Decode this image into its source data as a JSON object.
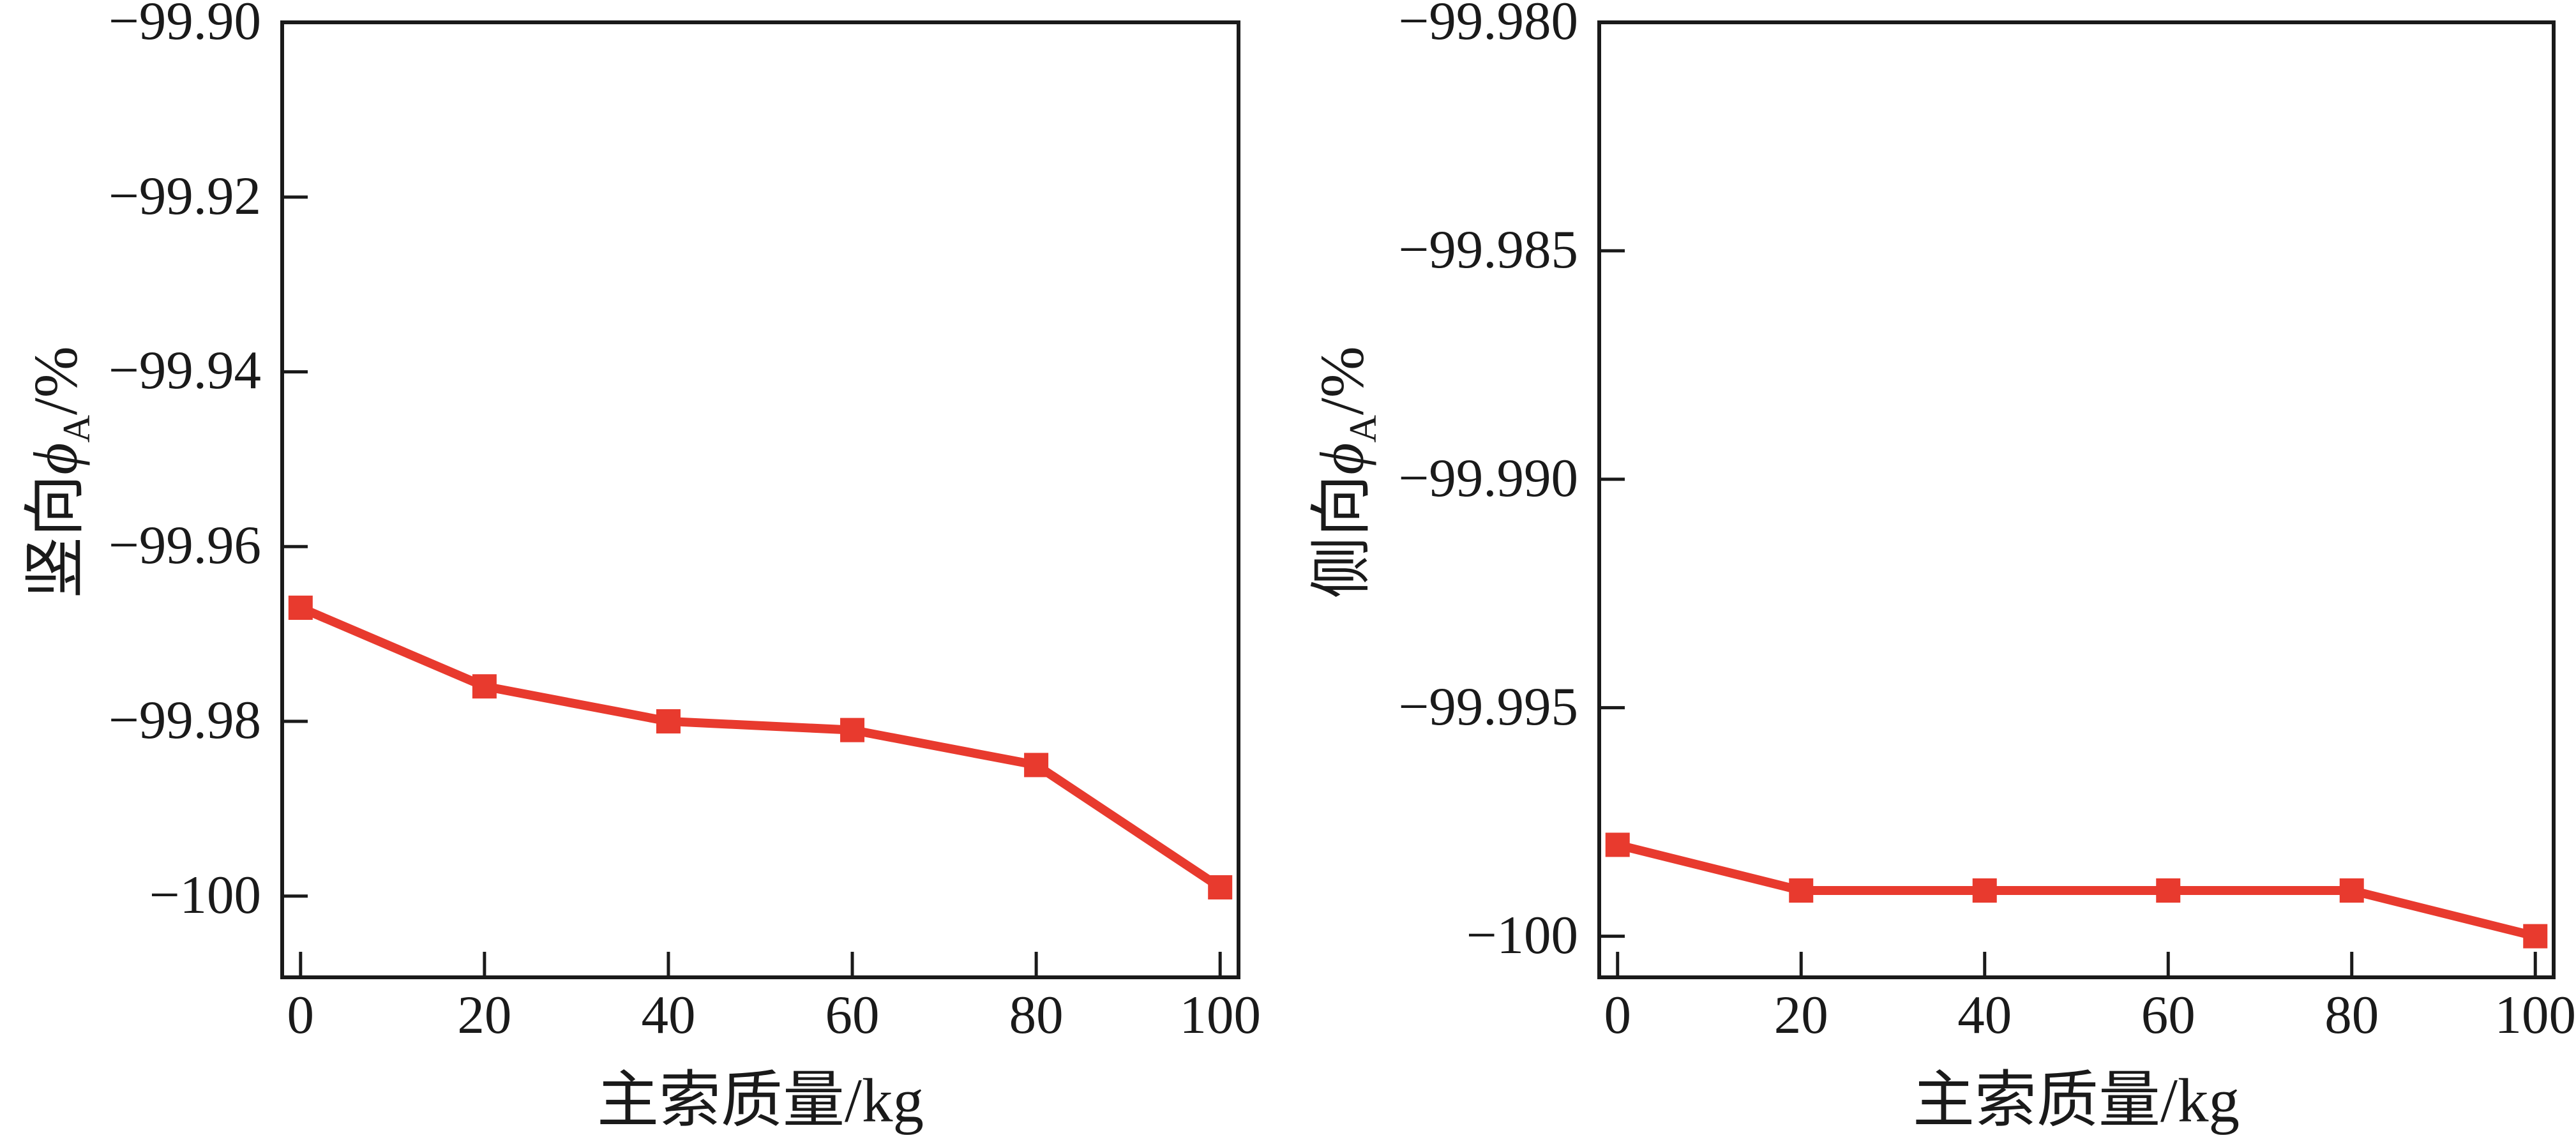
{
  "figure": {
    "background": "#ffffff",
    "ink": "#1a1a1a",
    "accent_red": "#e83a2e"
  },
  "chart_data": [
    {
      "type": "line",
      "title": "",
      "xlabel": "主索质量/kg",
      "ylabel": {
        "prefix": "竖向",
        "symbol": "ϕ",
        "subscript": "A",
        "suffix": "/%",
        "plain": "竖向ϕ_A/%"
      },
      "x": [
        0,
        20,
        40,
        60,
        80,
        100
      ],
      "series": [
        {
          "name": "竖向ϕ_A",
          "color": "#e83a2e",
          "marker": "square",
          "values": [
            -99.967,
            -99.976,
            -99.98,
            -99.981,
            -99.985,
            -99.999
          ]
        }
      ],
      "xticks": {
        "values": [
          0,
          20,
          40,
          60,
          80,
          100
        ],
        "labels": [
          "0",
          "20",
          "40",
          "60",
          "80",
          "100"
        ]
      },
      "yticks": {
        "values": [
          -99.9,
          -99.92,
          -99.94,
          -99.96,
          -99.98,
          -100
        ],
        "labels": [
          "−99.90",
          "−99.92",
          "−99.94",
          "−99.96",
          "−99.98",
          "−100"
        ]
      },
      "xlim": [
        -2,
        102
      ],
      "ylim": [
        -100.0093,
        -99.9
      ],
      "grid": false,
      "legend": "none"
    },
    {
      "type": "line",
      "title": "",
      "xlabel": "主索质量/kg",
      "ylabel": {
        "prefix": "侧向",
        "symbol": "ϕ",
        "subscript": "A",
        "suffix": "/%",
        "plain": "侧向ϕ_A/%"
      },
      "x": [
        0,
        20,
        40,
        60,
        80,
        100
      ],
      "series": [
        {
          "name": "侧向ϕ_A",
          "color": "#e83a2e",
          "marker": "square",
          "values": [
            -99.998,
            -99.999,
            -99.999,
            -99.999,
            -99.999,
            -100.0
          ]
        }
      ],
      "xticks": {
        "values": [
          0,
          20,
          40,
          60,
          80,
          100
        ],
        "labels": [
          "0",
          "20",
          "40",
          "60",
          "80",
          "100"
        ]
      },
      "yticks": {
        "values": [
          -99.98,
          -99.985,
          -99.99,
          -99.995,
          -100
        ],
        "labels": [
          "−99.980",
          "−99.985",
          "−99.990",
          "−99.995",
          "−100"
        ]
      },
      "xlim": [
        -2,
        102
      ],
      "ylim": [
        -100.0009,
        -99.98
      ],
      "grid": false,
      "legend": "none"
    }
  ]
}
